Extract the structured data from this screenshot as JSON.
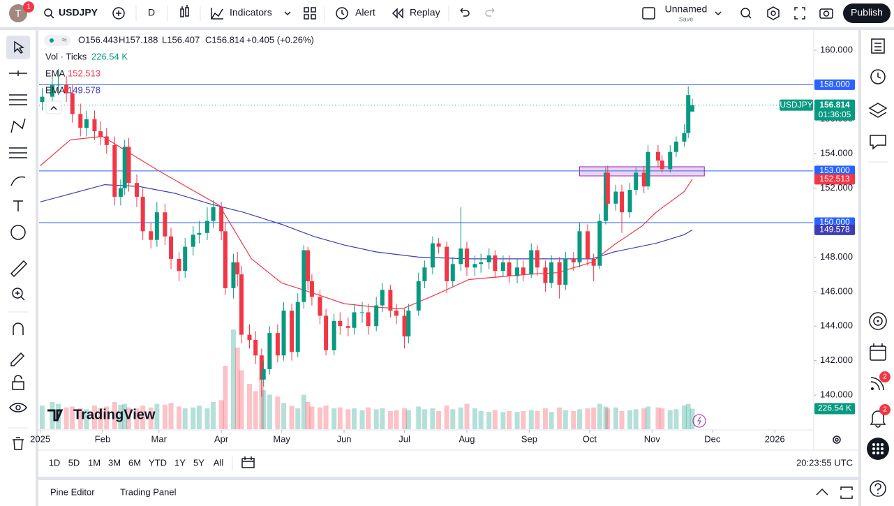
{
  "toolbar": {
    "avatar": "T",
    "notifications": "1",
    "symbol": "USDJPY",
    "interval": "D",
    "indicators": "Indicators",
    "alert": "Alert",
    "replay": "Replay",
    "layout_name": "Unnamed",
    "layout_status": "Save",
    "publish": "Publish"
  },
  "chart_data": {
    "type": "candlestick",
    "symbol_label": "USDJPY",
    "legend": {
      "open": "O156.443",
      "high": "H157.188",
      "low": "L156.407",
      "close": "C156.814",
      "change": "+0.405 (+0.26%)",
      "volume_name": "Vol · Ticks",
      "volume_value": "226.54 K"
    },
    "x": [
      1,
      6,
      9,
      13,
      16,
      20,
      23,
      27,
      30,
      33,
      37,
      40,
      42,
      44,
      48,
      51,
      55,
      58,
      62,
      65,
      69,
      72,
      76,
      79,
      83,
      86,
      90,
      92,
      96,
      98,
      100,
      104,
      107,
      110,
      111,
      114,
      118,
      121,
      125,
      128,
      131,
      133,
      135,
      139,
      142,
      146,
      149,
      153,
      156,
      160,
      163,
      167,
      170,
      174,
      177,
      181,
      183,
      188,
      191,
      195,
      198,
      202,
      205,
      209,
      212,
      216,
      219,
      223,
      226,
      230,
      233,
      237,
      240,
      244,
      247,
      251,
      254,
      258,
      261,
      265,
      268,
      272,
      275,
      278,
      281,
      282,
      286,
      289,
      293,
      296,
      300,
      302,
      307,
      309,
      313,
      316,
      320,
      322,
      324
    ],
    "open": [
      157.0,
      157.3,
      158.0,
      158.0,
      157.5,
      156.3,
      155.5,
      156.0,
      155.3,
      155.0,
      154.5,
      151.5,
      152.0,
      154.4,
      152.3,
      151.5,
      149.5,
      149.0,
      150.6,
      149.2,
      147.9,
      147.2,
      148.6,
      149.3,
      149.4,
      150.1,
      150.9,
      149.5,
      146.2,
      147.7,
      147.0,
      143.5,
      143.2,
      142.3,
      140.9,
      141.5,
      143.6,
      142.3,
      144.9,
      142.5,
      145.4,
      148.4,
      146.6,
      145.7,
      144.6,
      142.6,
      144.3,
      144.0,
      143.9,
      144.8,
      144.8,
      144.0,
      145.2,
      146.1,
      144.9,
      144.6,
      143.4,
      144.9,
      146.6,
      147.4,
      148.8,
      148.6,
      146.6,
      147.6,
      148.5,
      147.4,
      147.6,
      147.7,
      148.1,
      147.2,
      147.7,
      146.9,
      147.4,
      147.0,
      148.4,
      147.4,
      146.5,
      147.7,
      146.4,
      147.9,
      147.7,
      149.5,
      147.9,
      147.5,
      150.1,
      152.9,
      151.1,
      151.8,
      150.6,
      151.9,
      152.9,
      152.1,
      154.1,
      153.6,
      153.1,
      154.1,
      154.7,
      155.2,
      156.443
    ],
    "high": [
      157.8,
      158.6,
      158.9,
      158.5,
      158.0,
      156.9,
      156.5,
      156.5,
      155.9,
      155.5,
      155.0,
      152.5,
      154.8,
      154.9,
      152.8,
      152.0,
      150.0,
      151.2,
      151.1,
      149.7,
      148.3,
      149.1,
      149.8,
      150.1,
      150.9,
      151.3,
      151.2,
      150.0,
      148.2,
      148.3,
      147.5,
      144.1,
      143.7,
      142.7,
      142.0,
      144.0,
      144.1,
      145.4,
      145.3,
      145.9,
      148.7,
      148.6,
      147.0,
      146.1,
      145.0,
      144.7,
      144.8,
      144.5,
      145.3,
      145.4,
      145.3,
      145.7,
      146.5,
      146.4,
      145.3,
      145.0,
      145.3,
      147.1,
      147.8,
      149.2,
      149.1,
      148.9,
      148.0,
      150.9,
      148.9,
      148.1,
      148.2,
      148.5,
      148.4,
      148.1,
      148.1,
      147.9,
      147.8,
      148.8,
      148.7,
      147.8,
      148.1,
      148.0,
      148.3,
      148.3,
      150.0,
      149.9,
      148.2,
      150.5,
      153.2,
      153.3,
      152.2,
      152.2,
      152.3,
      153.2,
      153.3,
      154.5,
      154.5,
      153.9,
      154.5,
      155.0,
      155.7,
      157.9,
      157.188
    ],
    "low": [
      156.5,
      156.9,
      157.4,
      157.0,
      155.8,
      155.0,
      155.0,
      154.8,
      154.5,
      154.0,
      151.0,
      151.0,
      151.6,
      151.8,
      150.9,
      149.0,
      148.5,
      148.6,
      148.7,
      147.3,
      146.6,
      146.8,
      148.1,
      148.8,
      149.0,
      149.7,
      149.0,
      145.8,
      145.6,
      146.3,
      143.0,
      142.7,
      141.8,
      139.9,
      140.5,
      141.2,
      141.9,
      142.0,
      142.0,
      142.2,
      145.0,
      146.1,
      145.2,
      144.1,
      142.3,
      142.3,
      143.5,
      143.4,
      143.5,
      144.2,
      143.5,
      143.7,
      144.8,
      144.5,
      144.1,
      142.7,
      143.0,
      144.6,
      146.2,
      147.0,
      148.2,
      145.9,
      146.3,
      147.2,
      146.9,
      146.9,
      147.1,
      147.3,
      146.8,
      146.9,
      146.5,
      146.5,
      146.6,
      146.8,
      146.9,
      146.0,
      146.2,
      145.6,
      146.1,
      147.2,
      147.4,
      147.5,
      146.6,
      147.3,
      149.9,
      150.8,
      150.7,
      149.4,
      150.3,
      151.6,
      151.7,
      151.9,
      153.2,
      152.9,
      152.9,
      153.8,
      154.4,
      154.9,
      156.407
    ],
    "close": [
      157.3,
      158.0,
      158.0,
      157.5,
      156.3,
      155.5,
      156.0,
      155.3,
      155.0,
      154.5,
      151.5,
      152.0,
      154.4,
      152.3,
      151.5,
      149.5,
      149.0,
      150.6,
      149.2,
      147.9,
      147.2,
      148.6,
      149.3,
      149.4,
      150.1,
      150.9,
      149.5,
      146.2,
      147.7,
      147.0,
      143.5,
      143.2,
      142.3,
      140.9,
      141.5,
      143.6,
      142.3,
      144.9,
      142.5,
      145.4,
      148.4,
      146.6,
      145.7,
      144.6,
      142.6,
      144.3,
      144.0,
      143.9,
      144.8,
      144.8,
      144.0,
      145.2,
      146.1,
      144.9,
      144.6,
      143.4,
      144.9,
      146.6,
      147.4,
      148.8,
      148.6,
      146.6,
      147.6,
      148.5,
      147.4,
      147.6,
      147.7,
      148.1,
      147.2,
      147.7,
      146.9,
      147.4,
      147.0,
      148.4,
      147.4,
      146.5,
      147.7,
      146.4,
      147.9,
      147.7,
      149.5,
      147.9,
      147.5,
      150.1,
      152.9,
      151.1,
      151.8,
      150.6,
      151.9,
      152.9,
      152.1,
      154.1,
      153.6,
      153.1,
      154.1,
      154.7,
      155.2,
      157.4,
      156.814
    ],
    "up_color": "#089981",
    "down_color": "#f23645",
    "volume": {
      "values": [
        260,
        300,
        280,
        240,
        250,
        230,
        220,
        260,
        230,
        250,
        300,
        270,
        280,
        240,
        230,
        260,
        240,
        280,
        270,
        290,
        250,
        230,
        240,
        260,
        230,
        300,
        320,
        700,
        1100,
        900,
        650,
        500,
        420,
        560,
        430,
        380,
        360,
        290,
        260,
        230,
        380,
        300,
        250,
        240,
        260,
        230,
        240,
        220,
        230,
        210,
        240,
        220,
        230,
        200,
        210,
        230,
        210,
        250,
        220,
        230,
        200,
        260,
        220,
        240,
        280,
        230,
        200,
        190,
        210,
        190,
        200,
        190,
        200,
        210,
        200,
        230,
        190,
        240,
        210,
        200,
        220,
        230,
        240,
        280,
        250,
        230,
        240,
        200,
        210,
        220,
        230,
        250,
        240,
        230,
        210,
        220,
        260,
        280,
        226.54
      ],
      "last_label": "226.54 K"
    },
    "emas": [
      {
        "name": "EMA",
        "color": "#f23645",
        "x": [
          0,
          15,
          31,
          59,
          89,
          105,
          120,
          136,
          151,
          167,
          180,
          198,
          213,
          242,
          257,
          274,
          285,
          299,
          306,
          320,
          324
        ],
        "values": [
          153.3,
          154.8,
          155.0,
          153.0,
          151.0,
          147.9,
          146.5,
          145.9,
          145.3,
          145.1,
          145.0,
          145.9,
          146.7,
          147.0,
          147.1,
          147.7,
          148.7,
          149.8,
          150.6,
          151.8,
          152.513
        ],
        "last_label": "152.513"
      },
      {
        "name": "EMA",
        "color": "#3d3db5",
        "x": [
          0,
          32,
          49,
          67,
          84,
          101,
          120,
          136,
          151,
          167,
          188,
          213,
          242,
          274,
          285,
          306,
          320,
          324
        ],
        "values": [
          151.2,
          152.2,
          152.1,
          151.7,
          151.1,
          150.6,
          149.9,
          149.2,
          148.7,
          148.3,
          148.0,
          147.9,
          147.9,
          147.9,
          148.3,
          148.8,
          149.3,
          149.578
        ],
        "last_label": "149.578"
      }
    ],
    "hline_color": "#2962ff",
    "hlines": [
      {
        "value": 158,
        "label": "158.000"
      },
      {
        "value": 153,
        "label": "153.000"
      },
      {
        "value": 150,
        "label": "150.000"
      }
    ],
    "zone": {
      "x": [
        268,
        330
      ],
      "y": [
        152.71,
        153.24
      ],
      "color": "#9c27b0"
    },
    "last_price_label": "156.814",
    "countdown": "01:36:05",
    "watermark": "TradingView",
    "xlim": [
      -0.55,
      384
    ],
    "xticks": [
      {
        "value": 0,
        "label": "2025"
      },
      {
        "value": 31,
        "label": "Feb"
      },
      {
        "value": 59,
        "label": "Mar"
      },
      {
        "value": 90,
        "label": "Apr"
      },
      {
        "value": 120,
        "label": "May"
      },
      {
        "value": 151,
        "label": "Jun"
      },
      {
        "value": 181,
        "label": "Jul"
      },
      {
        "value": 212,
        "label": "Aug"
      },
      {
        "value": 243,
        "label": "Sep"
      },
      {
        "value": 273,
        "label": "Oct"
      },
      {
        "value": 304,
        "label": "Nov"
      },
      {
        "value": 334,
        "label": "Dec"
      },
      {
        "value": 365,
        "label": "2026"
      }
    ],
    "ylim": [
      138.02,
      161.13
    ],
    "yticks": [
      {
        "value": 140,
        "label": "140.000"
      },
      {
        "value": 142,
        "label": "142.000"
      },
      {
        "value": 144,
        "label": "144.000"
      },
      {
        "value": 146,
        "label": "146.000"
      },
      {
        "value": 148,
        "label": "148.000"
      },
      {
        "value": 150,
        "label": "150.000"
      },
      {
        "value": 152,
        "label": "152.000"
      },
      {
        "value": 154,
        "label": "154.000"
      },
      {
        "value": 156,
        "label": "156.000"
      },
      {
        "value": 158,
        "label": "158.000"
      },
      {
        "value": 160,
        "label": "160.000"
      }
    ]
  },
  "range_bar": {
    "ranges": [
      "1D",
      "5D",
      "1M",
      "3M",
      "6M",
      "YTD",
      "1Y",
      "5Y",
      "All"
    ],
    "clock": "20:23:55 UTC"
  },
  "bottom_panel": {
    "tabs": [
      "Pine Editor",
      "Trading Panel"
    ]
  },
  "sidebar": {
    "badges": [
      "2",
      "2"
    ]
  }
}
